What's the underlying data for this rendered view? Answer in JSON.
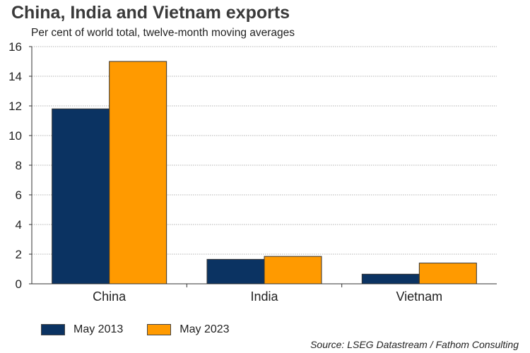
{
  "chart_data": {
    "type": "bar",
    "title": "China, India and Vietnam exports",
    "subtitle": "Per cent of world total, twelve-month moving averages",
    "categories": [
      "China",
      "India",
      "Vietnam"
    ],
    "series": [
      {
        "name": "May 2013",
        "color": "#0b3362",
        "values": [
          11.8,
          1.65,
          0.65
        ]
      },
      {
        "name": "May 2023",
        "color": "#ff9a00",
        "values": [
          15.0,
          1.85,
          1.4
        ]
      }
    ],
    "ylim": [
      0,
      16
    ],
    "yticks": [
      "0",
      "2",
      "4",
      "6",
      "8",
      "10",
      "12",
      "14",
      "16"
    ],
    "ytick_values": [
      0,
      2,
      4,
      6,
      8,
      10,
      12,
      14,
      16
    ],
    "grid": true,
    "legend": "bottom-left",
    "source": "Source: LSEG Datastream / Fathom Consulting"
  }
}
